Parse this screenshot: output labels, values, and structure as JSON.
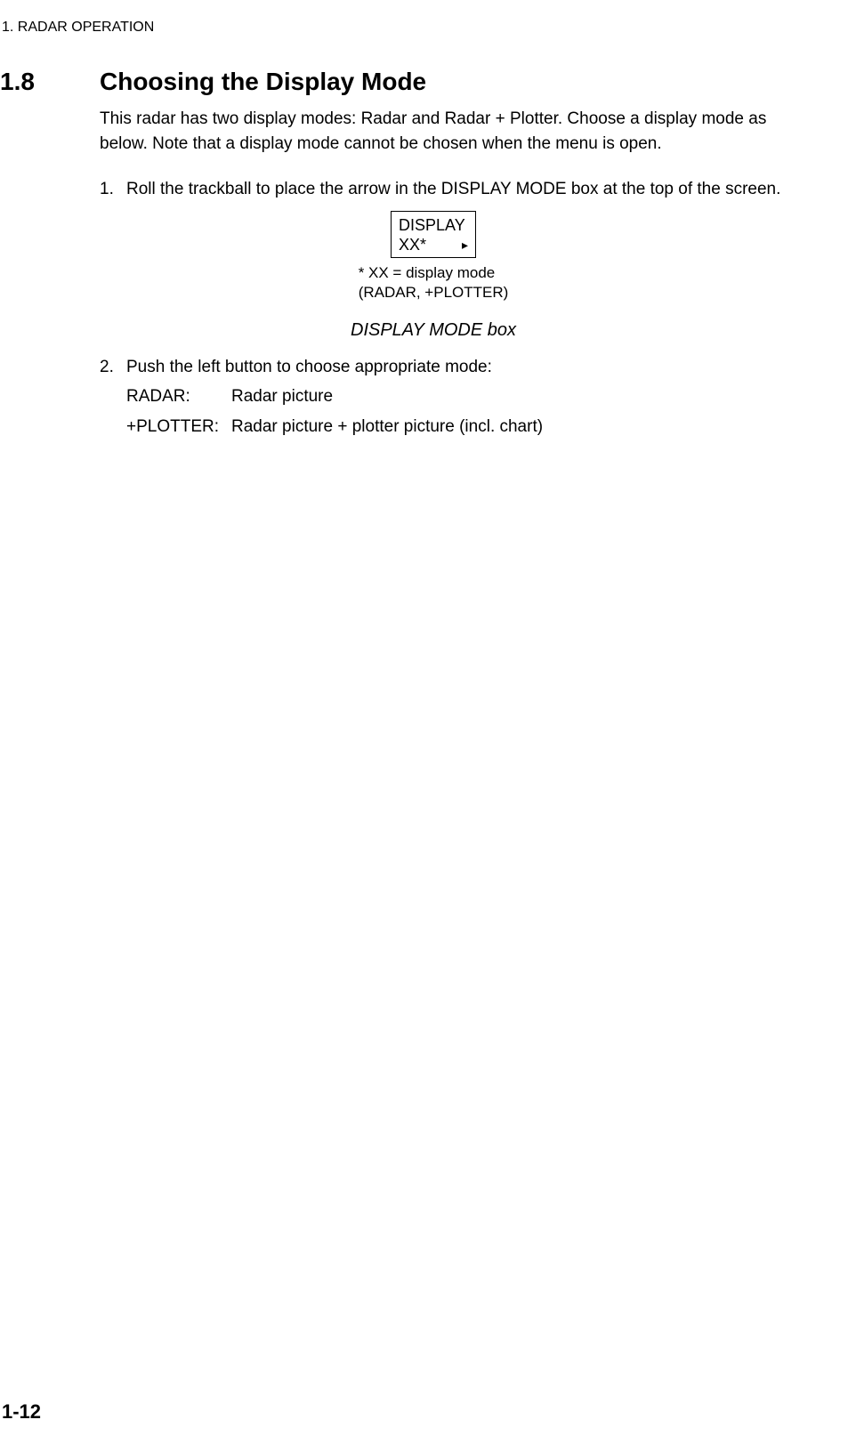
{
  "chapter_header": "1. RADAR OPERATION",
  "section": {
    "number": "1.8",
    "title": "Choosing the Display Mode"
  },
  "intro_paragraph": "This radar has two display modes: Radar and Radar + Plotter. Choose a display mode as below. Note that a display mode cannot be chosen when the menu is open.",
  "steps": [
    {
      "marker": "1.",
      "text": "Roll the trackball to place the arrow in the DISPLAY MODE box at the top of the screen."
    },
    {
      "marker": "2.",
      "text": "Push the left button to choose appropriate mode:"
    }
  ],
  "display_box": {
    "line1": "DISPLAY",
    "line2": "XX*",
    "arrow_glyph": "▸"
  },
  "box_note_line1": "* XX = display mode",
  "box_note_line2": "(RADAR, +PLOTTER)",
  "figure_caption": "DISPLAY MODE box",
  "definitions": [
    {
      "term": "RADAR:",
      "desc": "Radar picture"
    },
    {
      "term": "+PLOTTER:",
      "desc": "Radar picture + plotter picture (incl. chart)"
    }
  ],
  "page_number": "1-12",
  "colors": {
    "text": "#000000",
    "background": "#ffffff",
    "border": "#000000"
  },
  "typography": {
    "body_fontsize_pt": 14,
    "heading_fontsize_pt": 21,
    "caption_fontsize_pt": 15,
    "small_fontsize_pt": 13
  }
}
